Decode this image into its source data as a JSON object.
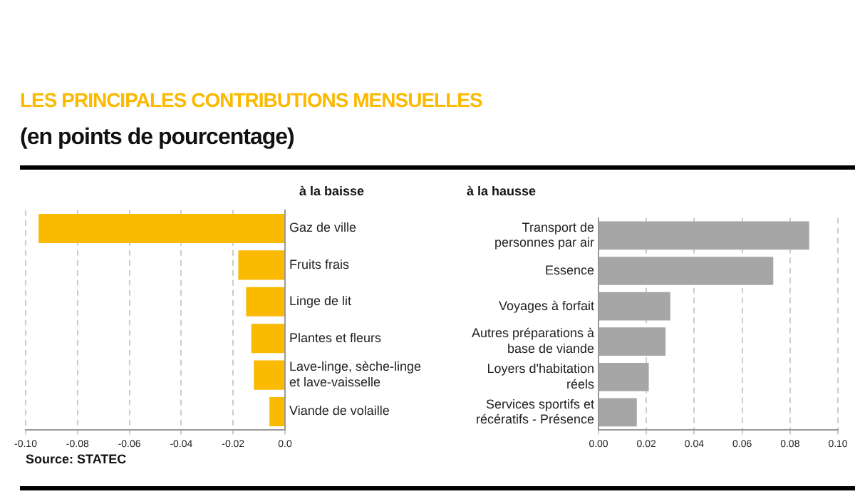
{
  "chart_data": [
    {
      "type": "bar",
      "orientation": "horizontal",
      "title": "LES PRINCIPALES CONTRIBUTIONS MENSUELLES",
      "subtitle": "(en points de pourcentage)",
      "annotations": [
        "à la baisse",
        "Source: STATEC"
      ],
      "categories": [
        "Gaz de ville",
        "Fruits frais",
        "Linge de lit",
        "Plantes et fleurs",
        "Lave-linge, sèche-linge et lave-vaisselle",
        "Viande de volaille"
      ],
      "series": [
        {
          "color": "#fbb900",
          "values": [
            -0.095,
            -0.018,
            -0.015,
            -0.013,
            -0.012,
            -0.006
          ]
        }
      ],
      "xlim": [
        -0.1,
        0
      ],
      "xticks": [
        {
          "value": -0.1,
          "label": "-0.10"
        },
        {
          "value": -0.08,
          "label": "-0.08"
        },
        {
          "value": -0.06,
          "label": "-0.06"
        },
        {
          "value": -0.04,
          "label": "-0.04"
        },
        {
          "value": -0.02,
          "label": "-0.02"
        },
        {
          "value": 0,
          "label": "0.0"
        }
      ],
      "grid": "x",
      "legend": false
    },
    {
      "type": "bar",
      "orientation": "horizontal",
      "annotations": [
        "à la hausse"
      ],
      "categories": [
        "Transport de personnes par air",
        "Essence",
        "Voyages à forfait",
        "Autres préparations à base de viande",
        "Loyers d'habitation réels",
        "Services sportifs et récératifs - Présence"
      ],
      "series": [
        {
          "color": "#a6a6a6",
          "values": [
            0.088,
            0.073,
            0.03,
            0.028,
            0.021,
            0.016
          ]
        }
      ],
      "xlim": [
        0,
        0.1
      ],
      "xticks": [
        {
          "value": 0,
          "label": "0.00"
        },
        {
          "value": 0.02,
          "label": "0.02"
        },
        {
          "value": 0.04,
          "label": "0.04"
        },
        {
          "value": 0.06,
          "label": "0.06"
        },
        {
          "value": 0.08,
          "label": "0.08"
        },
        {
          "value": 0.1,
          "label": "0.10"
        }
      ],
      "grid": "x",
      "legend": false
    }
  ]
}
